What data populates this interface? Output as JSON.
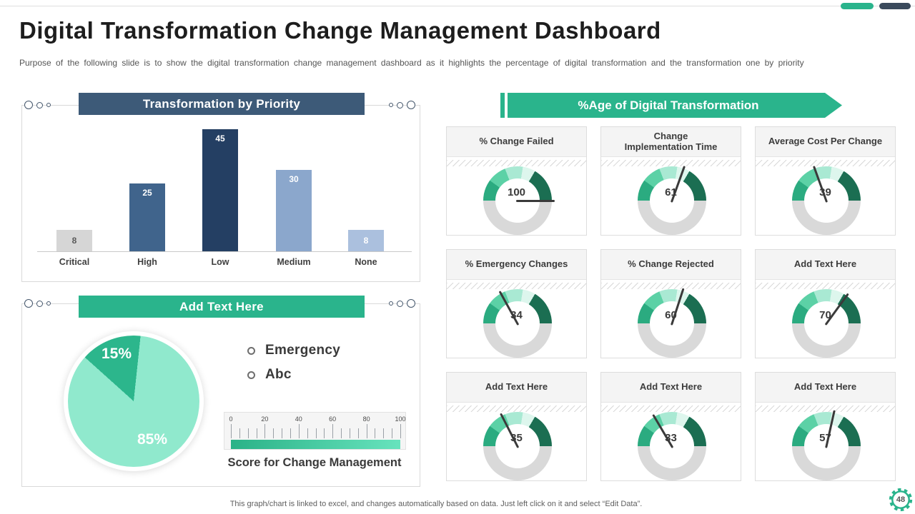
{
  "slide": {
    "title": "Digital Transformation Change Management Dashboard",
    "subtitle": "Purpose of the following slide is to show the digital transformation change management dashboard as it highlights the percentage of digital transformation and the transformation one by priority",
    "footer_note": "This graph/chart is linked to excel, and changes automatically based on data. Just left click on it and select “Edit Data”.",
    "page_number": "48"
  },
  "colors": {
    "teal": "#2AB48C",
    "navy_banner": "#3D5A78",
    "pill_dark": "#3A4A5C",
    "track_gray": "#D9D9D9"
  },
  "chart_data": [
    {
      "id": "transformation_by_priority",
      "type": "bar",
      "title": "Transformation by Priority",
      "categories": [
        "Critical",
        "High",
        "Low",
        "Medium",
        "None"
      ],
      "values": [
        8,
        25,
        45,
        30,
        8
      ],
      "bar_colors": [
        "#D6D6D6",
        "#40648C",
        "#243F63",
        "#8BA7CC",
        "#ABC0DE"
      ],
      "value_label_colors": [
        "#595959",
        "#FFFFFF",
        "#FFFFFF",
        "#FFFFFF",
        "#FFFFFF"
      ],
      "ylim": [
        0,
        47
      ],
      "grid": false,
      "legend_position": "none"
    },
    {
      "id": "emergency_pie",
      "type": "pie",
      "title": "Add Text Here",
      "labels": [
        "Emergency",
        "Abc"
      ],
      "values": [
        15,
        85
      ],
      "colors": [
        "#2CB68C",
        "#90E9CD"
      ],
      "start_angle_deg": 6,
      "data_labels": [
        "15%",
        "85%"
      ],
      "legend_position": "right"
    },
    {
      "id": "score_gauge",
      "type": "linear-gauge",
      "title": "Score for Change Management",
      "min": 0,
      "max": 100,
      "major_tick": 20,
      "minor_tick": 5,
      "tick_labels": [
        "0",
        "20",
        "40",
        "60",
        "80",
        "100"
      ],
      "bar_gradient": [
        "#2BB287",
        "#67E3BD"
      ]
    },
    {
      "id": "kpi_gauges",
      "type": "gauge-grid",
      "header": "%Age of Digital Transformation",
      "gauge_min": 0,
      "gauge_max": 100,
      "segments": [
        {
          "to": 20,
          "color": "#2BAB80"
        },
        {
          "to": 38,
          "color": "#5CD1A6"
        },
        {
          "to": 55,
          "color": "#A9E9D3"
        },
        {
          "to": 67,
          "color": "#DDF6ED"
        },
        {
          "to": 100,
          "color": "#1B6E52"
        }
      ],
      "track_color": "#D9D9D9",
      "cards": [
        {
          "title": "% Change Failed",
          "value": 100
        },
        {
          "title": "Change\nImplementation Time",
          "value": 61
        },
        {
          "title": "Average Cost Per Change",
          "value": 39
        },
        {
          "title": "% Emergency Changes",
          "value": 34
        },
        {
          "title": "% Change Rejected",
          "value": 60
        },
        {
          "title": "Add Text Here",
          "value": 70
        },
        {
          "title": "Add Text Here",
          "value": 35
        },
        {
          "title": "Add Text Here",
          "value": 33
        },
        {
          "title": "Add Text Here",
          "value": 57
        }
      ]
    }
  ]
}
